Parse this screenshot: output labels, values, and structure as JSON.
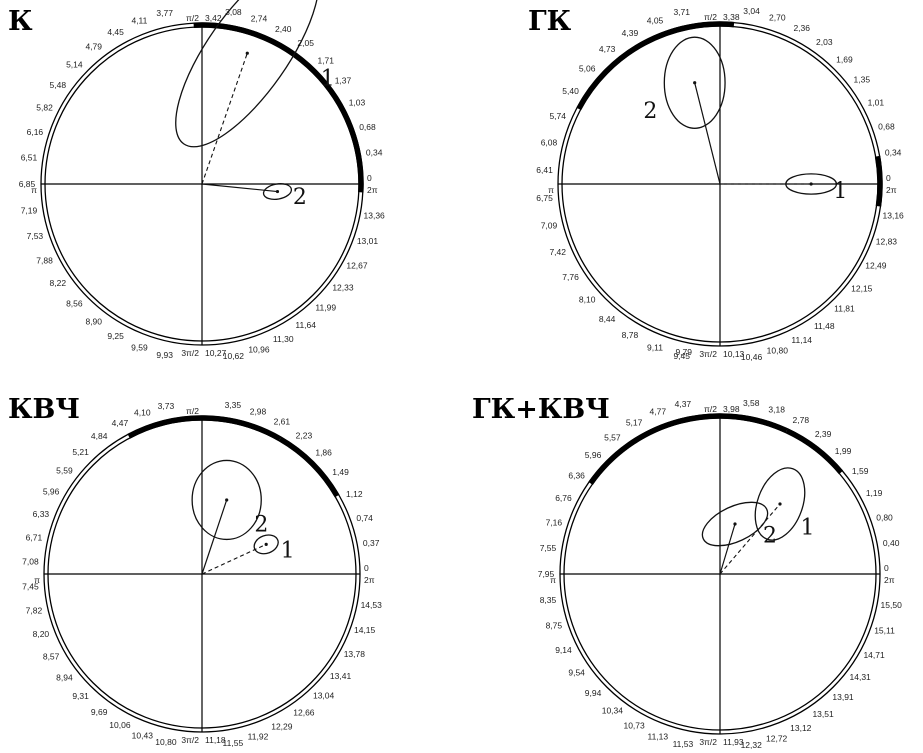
{
  "panels": [
    {
      "id": "k",
      "title": "К",
      "ticks_left": [
        "3,77",
        "4,11",
        "4,45",
        "4,79",
        "5,14",
        "5,48",
        "5,82",
        "6,16",
        "6,51",
        "6,85",
        "7,19",
        "7,53",
        "7,88",
        "8,22",
        "8,56",
        "8,90",
        "9,25",
        "9,59",
        "9,93"
      ],
      "ticks_right": [
        "3,08",
        "2,74",
        "2,40",
        "2,05",
        "1,71",
        "1,37",
        "1,03",
        "0,68",
        "0,34",
        "13,36",
        "13,01",
        "12,67",
        "12,33",
        "11,99",
        "11,64",
        "11,30",
        "10,96",
        "10,62"
      ],
      "lab_top": "π/2",
      "lab_top_val": "3,42",
      "lab_bottom": "3π/2",
      "lab_bottom_val": "10,27",
      "lab_right": "0",
      "lab_right2": "2π",
      "lab_left": "π",
      "arc": {
        "start_deg": -3,
        "end_deg": 93
      },
      "curves": [
        {
          "label": "1",
          "tip": [
            0.9,
            2.6
          ],
          "ellipse": {
            "rx": 2.2,
            "ry": 0.8,
            "rot": -55
          }
        },
        {
          "label": "2",
          "tip": [
            1.5,
            -0.15
          ],
          "ellipse": {
            "rx": 0.28,
            "ry": 0.15,
            "rot": -10
          }
        }
      ]
    },
    {
      "id": "gk",
      "title": "ГК",
      "ticks_left": [
        "3,71",
        "4,05",
        "4,39",
        "4,73",
        "5,06",
        "5,40",
        "5,74",
        "6,08",
        "6,41",
        "6,75",
        "7,09",
        "7,42",
        "7,76",
        "8,10",
        "8,44",
        "8,78",
        "9,11",
        "9,45"
      ],
      "ticks_right": [
        "3,04",
        "2,70",
        "2,36",
        "2,03",
        "1,69",
        "1,35",
        "1,01",
        "0,68",
        "0,34",
        "13,16",
        "12,83",
        "12,49",
        "12,15",
        "11,81",
        "11,48",
        "11,14",
        "10,80",
        "10,46"
      ],
      "lab_top": "π/2",
      "lab_top_val": "3,38",
      "lab_bottom": "3π/2",
      "lab_bottom_val": "10,13",
      "lab_right": "0",
      "lab_right2": "2π",
      "lab_left": "π",
      "bottom_left_val": "9,79",
      "arc": [
        {
          "start_deg": -8,
          "end_deg": 10
        },
        {
          "start_deg": 85,
          "end_deg": 152
        }
      ],
      "curves": [
        {
          "label": "1",
          "tip": [
            1.8,
            0
          ],
          "ellipse": {
            "rx": 0.5,
            "ry": 0.2,
            "rot": 0
          }
        },
        {
          "label": "2",
          "tip": [
            -0.5,
            2.0
          ],
          "ellipse": {
            "rx": 0.6,
            "ry": 0.9,
            "rot": 0
          }
        }
      ]
    },
    {
      "id": "kvch",
      "title": "КВЧ",
      "ticks_left": [
        "3,73",
        "4,10",
        "4,47",
        "4,84",
        "5,21",
        "5,59",
        "5,96",
        "6,33",
        "6,71",
        "7,08",
        "7,45",
        "7,82",
        "8,20",
        "8,57",
        "8,94",
        "9,31",
        "9,69",
        "10,06",
        "10,43",
        "10,80"
      ],
      "ticks_right": [
        "3,35",
        "2,98",
        "2,61",
        "2,23",
        "1,86",
        "1,49",
        "1,12",
        "0,74",
        "0,37",
        "14,53",
        "14,15",
        "13,78",
        "13,41",
        "13,04",
        "12,66",
        "12,29",
        "11,92",
        "11,55"
      ],
      "lab_top": "π/2",
      "lab_top_val": "",
      "lab_bottom": "3π/2",
      "lab_bottom_val": "11,18",
      "lab_right": "0",
      "lab_right2": "2π",
      "lab_left": "π",
      "arc": [
        {
          "start_deg": 30,
          "end_deg": 60
        },
        {
          "start_deg": 60,
          "end_deg": 118
        }
      ],
      "curves": [
        {
          "label": "1",
          "tip": [
            1.3,
            0.6
          ],
          "ellipse": {
            "rx": 0.25,
            "ry": 0.18,
            "rot": -20
          }
        },
        {
          "label": "2",
          "tip": [
            0.5,
            1.5
          ],
          "ellipse": {
            "rx": 0.7,
            "ry": 0.8,
            "rot": 0
          }
        }
      ]
    },
    {
      "id": "gkkvch",
      "title": "ГК+КВЧ",
      "ticks_left": [
        "4,37",
        "4,77",
        "5,17",
        "5,57",
        "5,96",
        "6,36",
        "6,76",
        "7,16",
        "7,55",
        "7,95",
        "8,35",
        "8,75",
        "9,14",
        "9,54",
        "9,94",
        "10,34",
        "10,73",
        "11,13",
        "11,53"
      ],
      "ticks_right": [
        "3,58",
        "3,18",
        "2,78",
        "2,39",
        "1,99",
        "1,59",
        "1,19",
        "0,80",
        "0,40",
        "15,50",
        "15,11",
        "14,71",
        "14,31",
        "13,91",
        "13,51",
        "13,12",
        "12,72",
        "12,32"
      ],
      "lab_top": "π/2",
      "lab_top_val": "3,98",
      "lab_bottom": "3π/2",
      "lab_bottom_val": "11,93",
      "lab_right": "0",
      "lab_right2": "2π",
      "lab_left": "π",
      "arc": [
        {
          "start_deg": 40,
          "end_deg": 65
        },
        {
          "start_deg": 65,
          "end_deg": 145
        }
      ],
      "curves": [
        {
          "label": "1",
          "tip": [
            1.2,
            1.4
          ],
          "ellipse": {
            "rx": 0.45,
            "ry": 0.75,
            "rot": 20
          }
        },
        {
          "label": "2",
          "tip": [
            0.3,
            1.0
          ],
          "ellipse": {
            "rx": 0.7,
            "ry": 0.35,
            "rot": -25
          }
        }
      ]
    }
  ]
}
